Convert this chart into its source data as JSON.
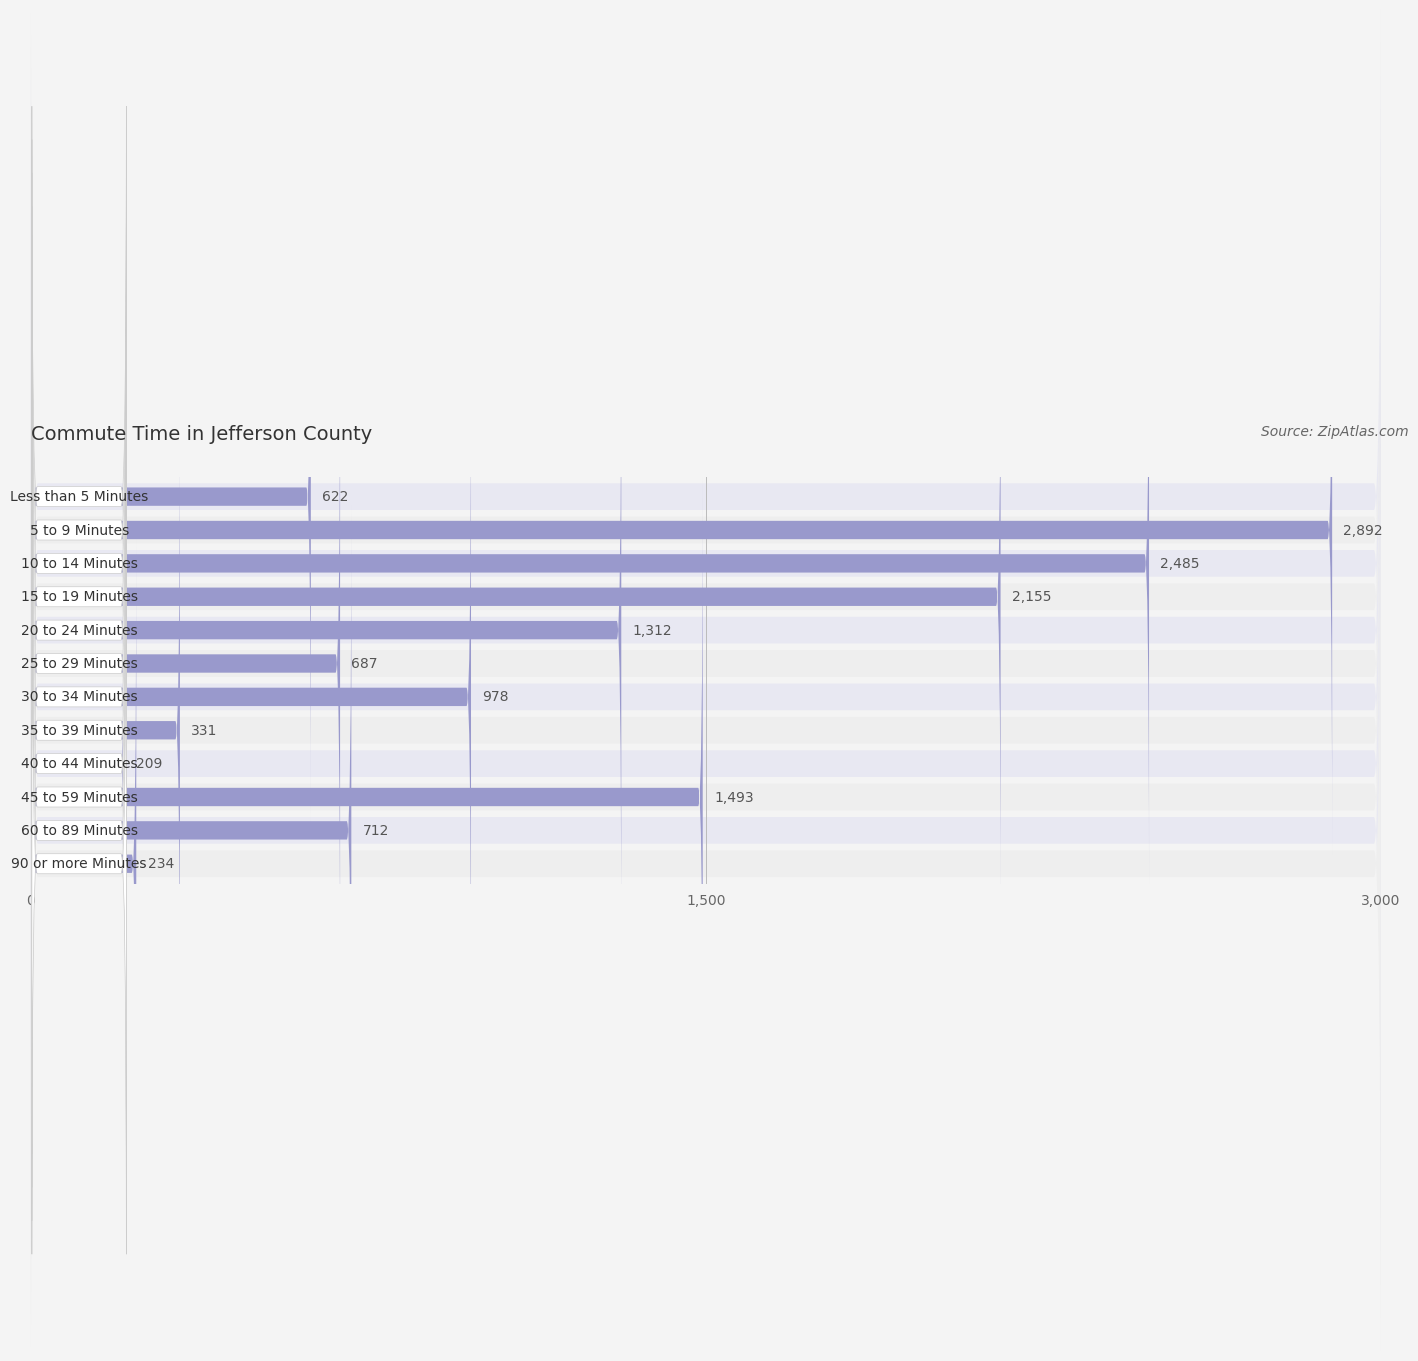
{
  "title": "Commute Time in Jefferson County",
  "source": "Source: ZipAtlas.com",
  "categories": [
    "Less than 5 Minutes",
    "5 to 9 Minutes",
    "10 to 14 Minutes",
    "15 to 19 Minutes",
    "20 to 24 Minutes",
    "25 to 29 Minutes",
    "30 to 34 Minutes",
    "35 to 39 Minutes",
    "40 to 44 Minutes",
    "45 to 59 Minutes",
    "60 to 89 Minutes",
    "90 or more Minutes"
  ],
  "values": [
    622,
    2892,
    2485,
    2155,
    1312,
    687,
    978,
    331,
    209,
    1493,
    712,
    234
  ],
  "bar_color": "#9999cc",
  "bar_color_alt": "#aaaadd",
  "row_bg_even": "#e8e8f2",
  "row_bg_odd": "#eeeeee",
  "label_bg": "#ffffff",
  "fig_bg": "#f4f4f4",
  "xlim": [
    0,
    3000
  ],
  "xticks": [
    0,
    1500,
    3000
  ],
  "title_fontsize": 14,
  "label_fontsize": 10,
  "value_fontsize": 10,
  "source_fontsize": 10
}
